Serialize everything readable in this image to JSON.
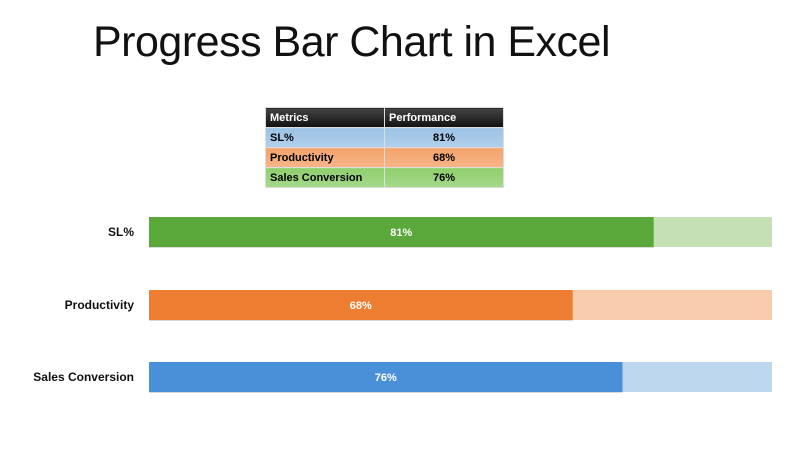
{
  "title": "Progress Bar Chart in Excel",
  "table": {
    "headers": [
      "Metrics",
      "Performance"
    ],
    "rows": [
      {
        "metric": "SL%",
        "performance": "81%",
        "color": "#9dc3e6"
      },
      {
        "metric": "Productivity",
        "performance": "68%",
        "color": "#f4a36b"
      },
      {
        "metric": "Sales Conversion",
        "performance": "76%",
        "color": "#8fcf6e"
      }
    ]
  },
  "chart_data": {
    "type": "bar",
    "orientation": "horizontal",
    "categories": [
      "SL%",
      "Productivity",
      "Sales Conversion"
    ],
    "values": [
      81,
      68,
      76
    ],
    "data_labels": [
      "81%",
      "68%",
      "76%"
    ],
    "xlim": [
      0,
      100
    ],
    "colors": [
      "#5aa83a",
      "#ed7d31",
      "#4a90d9"
    ],
    "track_colors": [
      "#c5e0b4",
      "#f8cbad",
      "#bdd7ee"
    ],
    "grid": false,
    "legend": "none"
  }
}
